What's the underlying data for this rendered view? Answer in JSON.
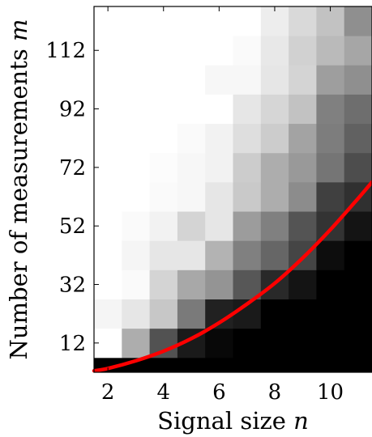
{
  "chart_data": {
    "type": "heatmap",
    "x_label_text": "Signal size ",
    "x_label_var": "n",
    "y_label_text": "Number of measurements ",
    "y_label_var": "m",
    "x_range": [
      1.5,
      11.5
    ],
    "y_range": [
      2,
      127
    ],
    "x_ticks": [
      2,
      4,
      6,
      8,
      10
    ],
    "y_ticks": [
      12,
      32,
      52,
      72,
      92,
      112
    ],
    "cell_width": 1,
    "cell_height": 10,
    "x_centers": [
      2,
      3,
      4,
      5,
      6,
      7,
      8,
      9,
      10,
      11
    ],
    "y_centers": [
      2,
      12,
      22,
      32,
      42,
      52,
      62,
      72,
      82,
      92,
      102,
      112,
      122
    ],
    "colormap": "black (0 = failure) to white (1 = success)",
    "values": [
      [
        0.0,
        0.0,
        0.0,
        0.0,
        0.0,
        0.0,
        0.0,
        0.0,
        0.0,
        0.0
      ],
      [
        1.0,
        0.68,
        0.32,
        0.1,
        0.03,
        0.0,
        0.0,
        0.0,
        0.0,
        0.0
      ],
      [
        0.96,
        0.9,
        0.78,
        0.48,
        0.13,
        0.1,
        0.0,
        0.0,
        0.0,
        0.0
      ],
      [
        1.0,
        0.98,
        0.83,
        0.66,
        0.58,
        0.34,
        0.16,
        0.08,
        0.0,
        0.0
      ],
      [
        1.0,
        0.96,
        0.9,
        0.9,
        0.7,
        0.5,
        0.4,
        0.27,
        0.05,
        0.0
      ],
      [
        1.0,
        0.98,
        0.95,
        0.83,
        0.9,
        0.61,
        0.5,
        0.33,
        0.2,
        0.08
      ],
      [
        1.0,
        1.0,
        0.98,
        0.97,
        0.9,
        0.79,
        0.68,
        0.55,
        0.25,
        0.19
      ],
      [
        1.0,
        1.0,
        0.99,
        0.97,
        0.95,
        0.8,
        0.68,
        0.6,
        0.46,
        0.3
      ],
      [
        1.0,
        1.0,
        1.0,
        0.98,
        0.95,
        0.87,
        0.8,
        0.64,
        0.49,
        0.38
      ],
      [
        1.0,
        1.0,
        1.0,
        1.0,
        1.0,
        0.9,
        0.84,
        0.76,
        0.5,
        0.43
      ],
      [
        1.0,
        1.0,
        1.0,
        1.0,
        0.97,
        0.97,
        0.9,
        0.83,
        0.62,
        0.56
      ],
      [
        1.0,
        1.0,
        1.0,
        1.0,
        1.0,
        0.98,
        0.91,
        0.82,
        0.73,
        0.65
      ],
      [
        1.0,
        1.0,
        1.0,
        1.0,
        1.0,
        1.0,
        0.93,
        0.85,
        0.76,
        0.56
      ]
    ],
    "curve": {
      "color": "#ff0000",
      "x": [
        1.5,
        2,
        3,
        4,
        5,
        6,
        7,
        8,
        9,
        10,
        11,
        11.5
      ],
      "y": [
        2.5,
        3.3,
        5.9,
        9.2,
        13.5,
        18.9,
        25.3,
        32.4,
        41,
        50.7,
        61.4,
        67
      ]
    },
    "grid": false,
    "legend": "none"
  }
}
